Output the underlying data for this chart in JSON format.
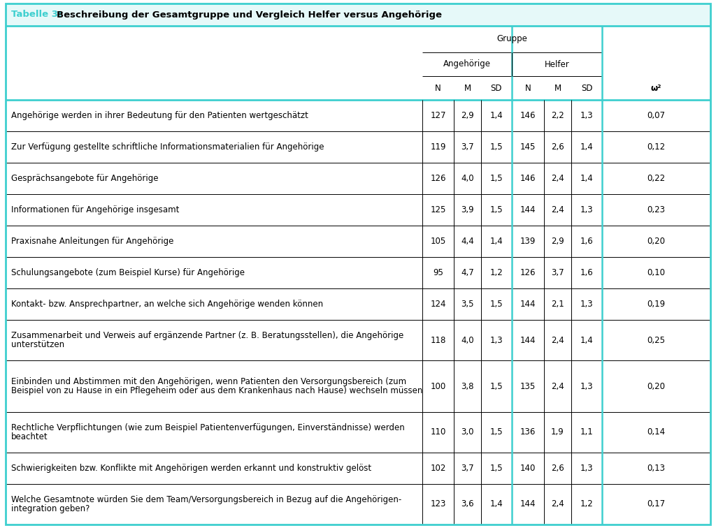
{
  "title_prefix": "Tabelle 3: ",
  "title_text": "Beschreibung der Gesamtgruppe und Vergleich Helfer versus Angehörige",
  "border_color": "#3ecfcf",
  "title_bg_color": "#e6f9f9",
  "row_labels": [
    "Angehörige werden in ihrer Bedeutung für den Patienten wertgeschätzt",
    "Zur Verfügung gestellte schriftliche Informationsmaterialien für Angehörige",
    "Gesprächsangebote für Angehörige",
    "Informationen für Angehörige insgesamt",
    "Praxisnahe Anleitungen für Angehörige",
    "Schulungsangebote (zum Beispiel Kurse) für Angehörige",
    "Kontakt- bzw. Ansprechpartner, an welche sich Angehörige wenden können",
    "Zusammenarbeit und Verweis auf ergänzende Partner (z. B. Beratungsstellen), die Angehörige\nunterstützen",
    "Einbinden und Abstimmen mit den Angehörigen, wenn Patienten den Versorgungsbereich (zum\nBeispiel von zu Hause in ein Pflegeheim oder aus dem Krankenhaus nach Hause) wechseln müssen",
    "Rechtliche Verpflichtungen (wie zum Beispiel Patientenverfügungen, Einverständnisse) werden\nbeachtet",
    "Schwierigkeiten bzw. Konflikte mit Angehörigen werden erkannt und konstruktiv gelöst",
    "Welche Gesamtnote würden Sie dem Team/Versorgungsbereich in Bezug auf die Angehörigen-\nintegration geben?"
  ],
  "row_nlines": [
    1,
    1,
    1,
    1,
    1,
    1,
    1,
    2,
    2,
    2,
    1,
    2
  ],
  "angehoerige_N": [
    "127",
    "119",
    "126",
    "125",
    "105",
    "95",
    "124",
    "118",
    "100",
    "110",
    "102",
    "123"
  ],
  "angehoerige_M": [
    "2,9",
    "3,7",
    "4,0",
    "3,9",
    "4,4",
    "4,7",
    "3,5",
    "4,0",
    "3,8",
    "3,0",
    "3,7",
    "3,6"
  ],
  "angehoerige_SD": [
    "1,4",
    "1,5",
    "1,5",
    "1,5",
    "1,4",
    "1,2",
    "1,5",
    "1,3",
    "1,5",
    "1,5",
    "1,5",
    "1,4"
  ],
  "helfer_N": [
    "146",
    "145",
    "146",
    "144",
    "139",
    "126",
    "144",
    "144",
    "135",
    "136",
    "140",
    "144"
  ],
  "helfer_M": [
    "2,2",
    "2,6",
    "2,4",
    "2,4",
    "2,9",
    "3,7",
    "2,1",
    "2,4",
    "2,4",
    "1,9",
    "2,6",
    "2,4"
  ],
  "helfer_SD": [
    "1,3",
    "1,4",
    "1,4",
    "1,3",
    "1,6",
    "1,6",
    "1,3",
    "1,4",
    "1,3",
    "1,1",
    "1,3",
    "1,2"
  ],
  "omega2": [
    "0,07",
    "0,12",
    "0,22",
    "0,23",
    "0,20",
    "0,10",
    "0,19",
    "0,25",
    "0,20",
    "0,14",
    "0,13",
    "0,17"
  ],
  "font_size_title": 9.5,
  "font_size_header": 8.5,
  "font_size_data": 8.5,
  "col_header_gruppe": "Gruppe",
  "col_header_angehoerige": "Angehörige",
  "col_header_helfer": "Helfer",
  "col_omega": "ω²"
}
